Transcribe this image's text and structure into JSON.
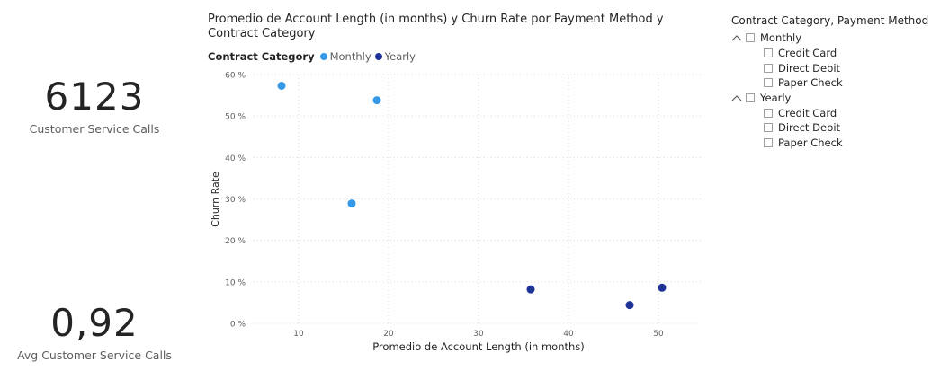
{
  "cards": [
    {
      "value": "6123",
      "label": "Customer Service Calls"
    },
    {
      "value": "0,92",
      "label": "Avg Customer Service Calls"
    }
  ],
  "chart": {
    "title": "Promedio de Account Length (in months) y Churn Rate por Payment Method y Contract Category",
    "legend_title": "Contract Category",
    "legend_items": [
      {
        "label": "Monthly",
        "color": "#3599e8"
      },
      {
        "label": "Yearly",
        "color": "#1f3296"
      }
    ]
  },
  "chart_data": {
    "type": "scatter",
    "title": "Promedio de Account Length (in months) y Churn Rate por Payment Method y Contract Category",
    "xlabel": "Promedio de Account Length (in months)",
    "ylabel": "Churn Rate",
    "xlim": [
      5,
      55
    ],
    "ylim": [
      0,
      60
    ],
    "x_ticks": [
      10,
      20,
      30,
      40,
      50
    ],
    "y_ticks": [
      0,
      10,
      20,
      30,
      40,
      50,
      60
    ],
    "y_tick_labels": [
      "0 %",
      "10 %",
      "20 %",
      "30 %",
      "40 %",
      "50 %",
      "60 %"
    ],
    "grid": true,
    "legend_position": "top-left",
    "series": [
      {
        "name": "Monthly",
        "color": "#3599e8",
        "points": [
          {
            "x": 8.1,
            "y": 57.3
          },
          {
            "x": 18.7,
            "y": 53.8
          },
          {
            "x": 15.9,
            "y": 28.9
          }
        ]
      },
      {
        "name": "Yearly",
        "color": "#1f3296",
        "points": [
          {
            "x": 35.8,
            "y": 8.2
          },
          {
            "x": 46.8,
            "y": 4.4
          },
          {
            "x": 50.4,
            "y": 8.6
          }
        ]
      }
    ]
  },
  "slicer": {
    "title": "Contract Category, Payment Method",
    "groups": [
      {
        "label": "Monthly",
        "children": [
          "Credit Card",
          "Direct Debit",
          "Paper Check"
        ]
      },
      {
        "label": "Yearly",
        "children": [
          "Credit Card",
          "Direct Debit",
          "Paper Check"
        ]
      }
    ]
  }
}
